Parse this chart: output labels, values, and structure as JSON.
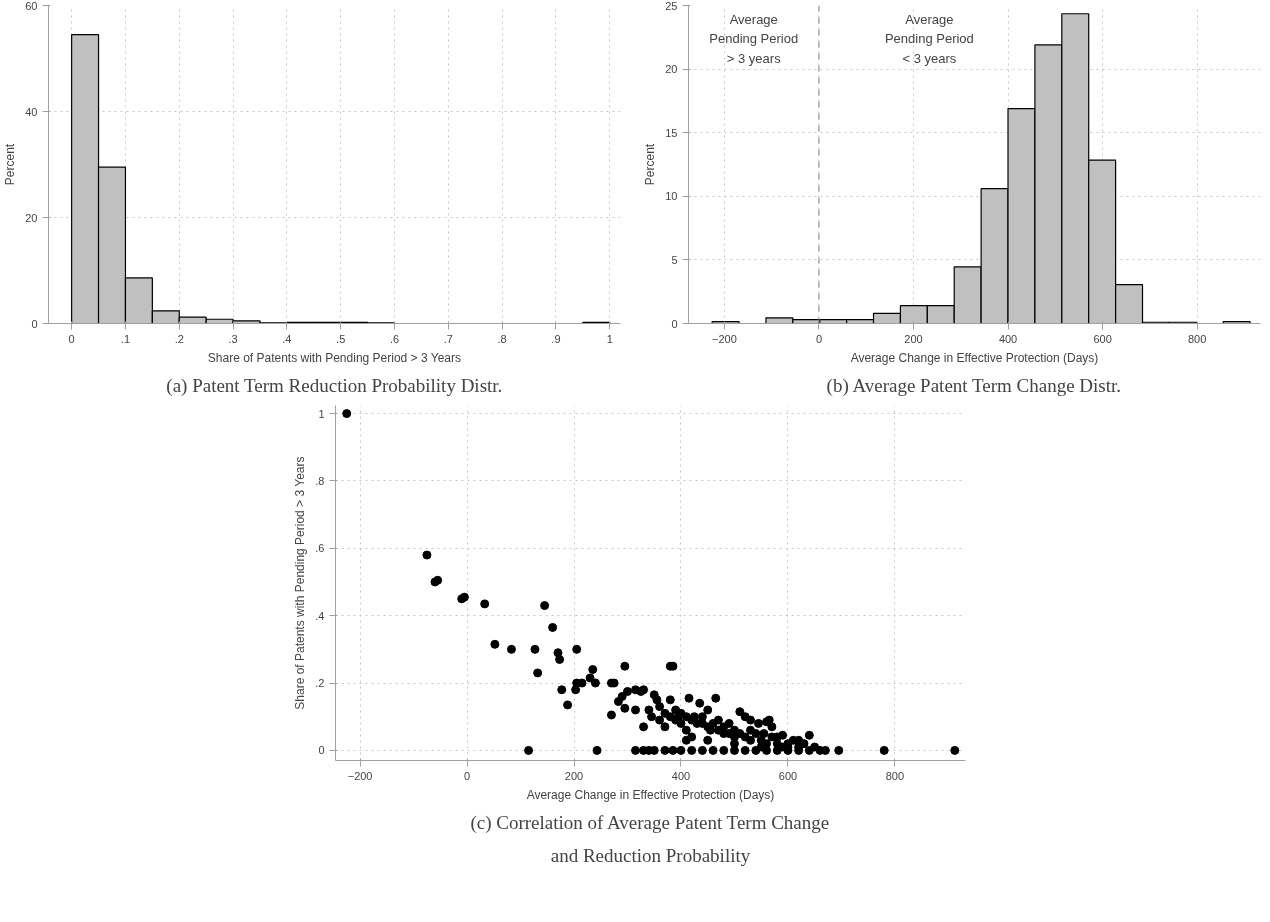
{
  "chart_data": [
    {
      "type": "histogram",
      "title": "(a) Patent Term Reduction Probability Distr.",
      "xlabel": "Share of Patents with Pending Period > 3 Years",
      "ylabel": "Percent",
      "bins": [
        0,
        0.05,
        0.1,
        0.15,
        0.2,
        0.25,
        0.3,
        0.35,
        0.4,
        0.45,
        0.5,
        0.55,
        0.6,
        0.65,
        0.7,
        0.75,
        0.8,
        0.85,
        0.9,
        0.95,
        1
      ],
      "values": [
        54.5,
        29.5,
        8.6,
        2.4,
        1.2,
        0.8,
        0.5,
        0.1,
        0.2,
        0.2,
        0.2,
        0.1,
        0,
        0,
        0,
        0,
        0,
        0,
        0,
        0.2
      ],
      "color": "#c0c0c0",
      "xlim": [
        -0.043,
        1.02
      ],
      "ylim": [
        0,
        60
      ],
      "xticks": [
        0,
        {
          "value": 0.1,
          "label": ".1"
        },
        {
          "value": 0.2,
          "label": ".2"
        },
        {
          "value": 0.3,
          "label": ".3"
        },
        {
          "value": 0.4,
          "label": ".4"
        },
        {
          "value": 0.5,
          "label": ".5"
        },
        {
          "value": 0.6,
          "label": ".6"
        },
        {
          "value": 0.7,
          "label": ".7"
        },
        {
          "value": 0.8,
          "label": ".8"
        },
        {
          "value": 0.9,
          "label": ".9"
        },
        1
      ],
      "yticks": [
        0,
        20,
        40,
        60
      ],
      "grid": true
    },
    {
      "type": "histogram",
      "title": "(b) Average Patent Term Change Distr.",
      "xlabel": "Average Change in Effective Protection (Days)",
      "ylabel": "Percent",
      "bins": [
        -226,
        -169.1,
        -112.2,
        -55.3,
        1.6,
        58.5,
        115.4,
        172.3,
        229.2,
        286.1,
        343,
        399.9,
        456.8,
        513.7,
        570.6,
        627.5,
        684.4,
        741.3,
        798.2,
        855.1,
        912
      ],
      "values": [
        0.15,
        0,
        0.45,
        0.3,
        0.3,
        0.3,
        0.8,
        1.4,
        1.4,
        4.45,
        10.6,
        16.9,
        21.9,
        24.35,
        12.85,
        3.05,
        0.1,
        0.1,
        0,
        0.15
      ],
      "color": "#c0c0c0",
      "xlim": [
        -276,
        934
      ],
      "ylim": [
        0,
        25
      ],
      "xticks": [
        -200,
        0,
        200,
        400,
        600,
        800
      ],
      "yticks": [
        0,
        5,
        10,
        15,
        20,
        25
      ],
      "grid": true,
      "ref_lines": [
        {
          "axis": "x",
          "value": 0,
          "line_style": "dashed",
          "color": "#808080"
        }
      ],
      "annotations": [
        "Average\nPending Period\n> 3 years",
        "Average\nPending Period\n< 3 years"
      ]
    },
    {
      "type": "scatter",
      "title": "(c) Correlation of Average Patent Term Change and Reduction Probability",
      "xlabel": "Average Change in Effective Protection (Days)",
      "ylabel": "Share of Patents with Pending Period > 3 Years",
      "marker": "circle",
      "color": "#000000",
      "grid": true,
      "xlim": [
        -246,
        932
      ],
      "ylim": [
        -0.03,
        1.024
      ],
      "xticks": [
        -200,
        0,
        200,
        400,
        600,
        800
      ],
      "yticks": [
        0,
        {
          "value": 0.2,
          "label": ".2"
        },
        {
          "value": 0.4,
          "label": ".4"
        },
        {
          "value": 0.6,
          "label": ".6"
        },
        {
          "value": 0.8,
          "label": ".8"
        },
        1
      ],
      "x": [
        -225,
        -75,
        -60,
        -55,
        -10,
        -5,
        33,
        52,
        83,
        127,
        132,
        145,
        160,
        170,
        173,
        177,
        188,
        205,
        203,
        205,
        215,
        230,
        235,
        240,
        270,
        275,
        270,
        283,
        290,
        295,
        295,
        300,
        315,
        325,
        330,
        315,
        330,
        340,
        350,
        355,
        345,
        360,
        370,
        380,
        385,
        380,
        390,
        395,
        400,
        410,
        415,
        420,
        425,
        435,
        440,
        450,
        455,
        465,
        470,
        480,
        490,
        500,
        510,
        520,
        530,
        545,
        555,
        565,
        570,
        580,
        590,
        600,
        610,
        620,
        630,
        640,
        650,
        660,
        670,
        695,
        780,
        912,
        115,
        243,
        315,
        330,
        340,
        350,
        370,
        385,
        400,
        420,
        440,
        460,
        480,
        500,
        520,
        540,
        560,
        580,
        600,
        620,
        640,
        360,
        370,
        380,
        390,
        400,
        410,
        420,
        430,
        440,
        450,
        460,
        470,
        480,
        490,
        500,
        510,
        520,
        530,
        540,
        550,
        560,
        570,
        580,
        590,
        600,
        620,
        450,
        500,
        550,
        530,
        560,
        410
      ],
      "values": [
        1.0,
        0.58,
        0.5,
        0.505,
        0.45,
        0.455,
        0.435,
        0.315,
        0.3,
        0.3,
        0.23,
        0.43,
        0.365,
        0.29,
        0.27,
        0.18,
        0.135,
        0.3,
        0.18,
        0.2,
        0.2,
        0.215,
        0.24,
        0.2,
        0.2,
        0.2,
        0.105,
        0.145,
        0.16,
        0.25,
        0.125,
        0.175,
        0.18,
        0.175,
        0.18,
        0.12,
        0.07,
        0.12,
        0.165,
        0.15,
        0.1,
        0.09,
        0.07,
        0.25,
        0.25,
        0.15,
        0.12,
        0.1,
        0.08,
        0.06,
        0.155,
        0.04,
        0.1,
        0.14,
        0.08,
        0.12,
        0.06,
        0.155,
        0.09,
        0.05,
        0.08,
        0.04,
        0.115,
        0.1,
        0.06,
        0.08,
        0.05,
        0.09,
        0.07,
        0.04,
        0.045,
        0.02,
        0.03,
        0.03,
        0.02,
        0.045,
        0.01,
        0,
        0,
        0,
        0,
        0,
        0,
        0,
        0,
        0,
        0,
        0,
        0,
        0,
        0,
        0,
        0,
        0,
        0,
        0,
        0,
        0,
        0,
        0,
        0,
        0,
        0,
        0.13,
        0.11,
        0.1,
        0.09,
        0.11,
        0.1,
        0.09,
        0.08,
        0.1,
        0.07,
        0.08,
        0.06,
        0.07,
        0.05,
        0.06,
        0.05,
        0.04,
        0.03,
        0.05,
        0.03,
        0.02,
        0.04,
        0.02,
        0.01,
        0.01,
        0.01,
        0.03,
        0.02,
        0.01,
        0.09,
        0.085,
        0.03
      ]
    }
  ]
}
